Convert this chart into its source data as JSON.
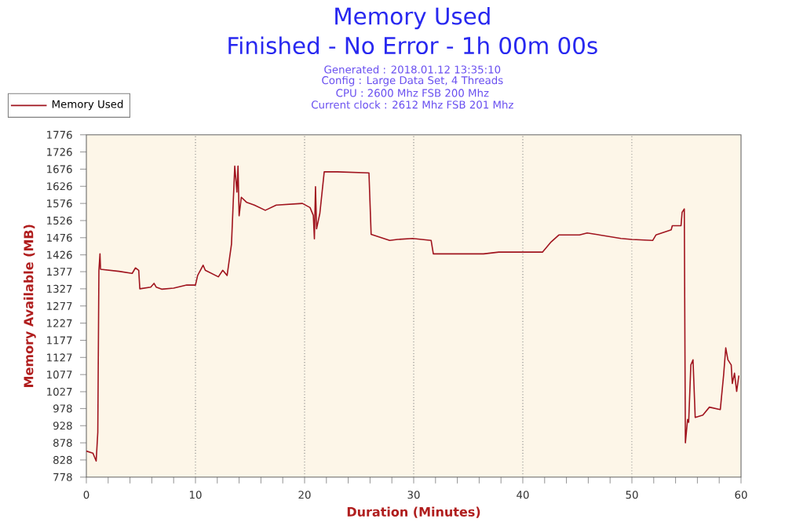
{
  "chart_data": {
    "type": "line",
    "title": "Memory Used",
    "subtitle": "Finished - No Error - 1h 00m 00s",
    "annotations": [
      "Generated : 2018.01.12 13:35:10",
      "Config : Large Data Set, 4 Threads",
      "CPU : 2600 Mhz FSB 200 Mhz",
      "Current clock : 2612 Mhz FSB 201 Mhz"
    ],
    "xlabel": "Duration (Minutes)",
    "ylabel": "Memory Available (MB)",
    "xlim": [
      0,
      60
    ],
    "ylim": [
      778,
      1776
    ],
    "xticks": [
      0,
      {
        "value": 2,
        "label": null
      },
      {
        "value": 4,
        "label": null
      },
      {
        "value": 6,
        "label": null
      },
      {
        "value": 8,
        "label": null
      },
      10,
      {
        "value": 12,
        "label": null
      },
      {
        "value": 14,
        "label": null
      },
      {
        "value": 16,
        "label": null
      },
      {
        "value": 18,
        "label": null
      },
      20,
      {
        "value": 22,
        "label": null
      },
      {
        "value": 24,
        "label": null
      },
      {
        "value": 26,
        "label": null
      },
      {
        "value": 28,
        "label": null
      },
      30,
      {
        "value": 32,
        "label": null
      },
      {
        "value": 34,
        "label": null
      },
      {
        "value": 36,
        "label": null
      },
      {
        "value": 38,
        "label": null
      },
      40,
      {
        "value": 42,
        "label": null
      },
      {
        "value": 44,
        "label": null
      },
      {
        "value": 46,
        "label": null
      },
      {
        "value": 48,
        "label": null
      },
      50,
      {
        "value": 52,
        "label": null
      },
      {
        "value": 54,
        "label": null
      },
      {
        "value": 56,
        "label": null
      },
      {
        "value": 58,
        "label": null
      },
      60
    ],
    "yticks": [
      778,
      828,
      878,
      928,
      978,
      1027,
      1077,
      1127,
      1177,
      1227,
      1277,
      1327,
      1377,
      1426,
      1476,
      1526,
      1576,
      1626,
      1676,
      1726,
      1776
    ],
    "grid": "x",
    "legend": "top left",
    "line_style": "solid",
    "marker": "none",
    "series": [
      {
        "name": "Memory Used",
        "color": "#a0141e",
        "x": [
          0,
          0.6,
          0.9,
          1.05,
          1.15,
          1.25,
          1.3,
          3.0,
          4.2,
          4.5,
          4.8,
          4.9,
          5.9,
          6.2,
          6.4,
          6.9,
          8.0,
          9.2,
          10.0,
          10.2,
          10.7,
          10.9,
          12.1,
          12.5,
          12.9,
          13.3,
          13.5,
          13.6,
          13.8,
          13.9,
          14.0,
          14.2,
          14.7,
          15.4,
          16.4,
          17.4,
          19.8,
          20.5,
          20.8,
          20.9,
          21.0,
          21.1,
          21.4,
          21.8,
          23.0,
          25.9,
          26.1,
          27.8,
          28.5,
          29.9,
          31.6,
          31.8,
          36.4,
          37.8,
          41.8,
          42.6,
          43.3,
          45.2,
          45.9,
          49.0,
          50.0,
          51.9,
          52.2,
          53.6,
          53.7,
          54.5,
          54.6,
          54.8,
          54.9,
          55.1,
          55.2,
          55.4,
          55.6,
          55.8,
          56.5,
          57.1,
          58.1,
          58.4,
          58.6,
          58.8,
          59.1,
          59.2,
          59.4,
          59.6,
          59.8
        ],
        "values": [
          854,
          848,
          825,
          909,
          1381,
          1429,
          1384,
          1378,
          1372,
          1388,
          1381,
          1327,
          1332,
          1343,
          1332,
          1326,
          1329,
          1338,
          1338,
          1366,
          1396,
          1381,
          1362,
          1381,
          1366,
          1457,
          1609,
          1685,
          1609,
          1685,
          1540,
          1594,
          1579,
          1571,
          1556,
          1571,
          1576,
          1564,
          1541,
          1473,
          1625,
          1502,
          1547,
          1668,
          1668,
          1665,
          1486,
          1468,
          1471,
          1474,
          1468,
          1429,
          1429,
          1434,
          1434,
          1464,
          1484,
          1484,
          1490,
          1474,
          1471,
          1468,
          1484,
          1499,
          1511,
          1511,
          1550,
          1560,
          878,
          946,
          938,
          1105,
          1120,
          952,
          959,
          982,
          975,
          1074,
          1155,
          1120,
          1105,
          1051,
          1081,
          1028,
          1074
        ]
      }
    ]
  }
}
